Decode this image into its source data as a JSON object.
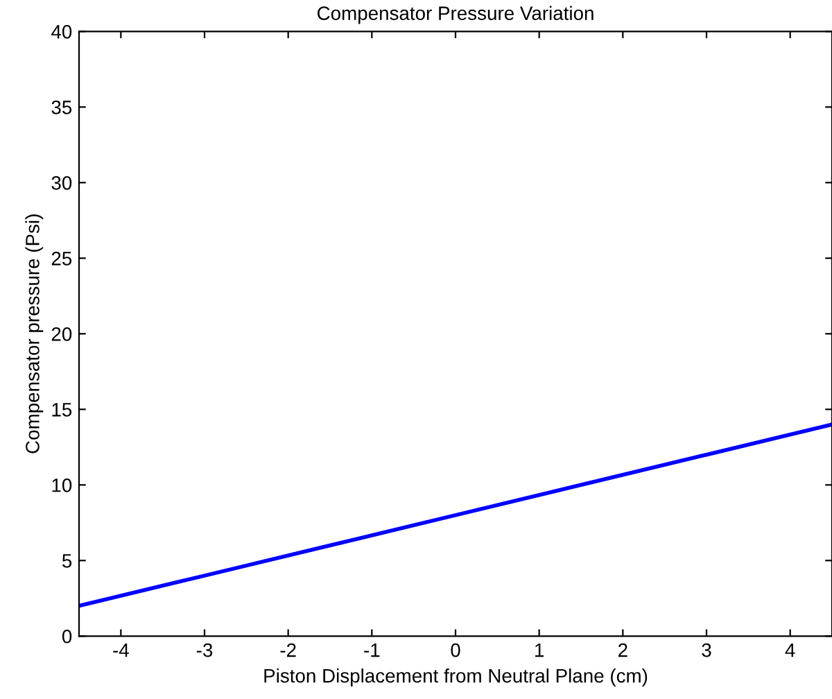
{
  "chart_data": {
    "type": "line",
    "title": "Compensator Pressure Variation",
    "xlabel": "Piston Displacement from Neutral Plane (cm)",
    "ylabel": "Compensator pressure (Psi)",
    "series": [
      {
        "color": "#0000ff",
        "x": [
          -4.5,
          -3,
          -1.5,
          0,
          1.5,
          3,
          4.5
        ],
        "values": [
          2,
          4,
          6,
          8,
          10,
          12,
          14
        ]
      }
    ],
    "xlim": [
      -4.5,
      4.5
    ],
    "xticks": [
      -4,
      -3,
      -2,
      -1,
      0,
      1,
      2,
      3,
      4
    ],
    "ylim": [
      0,
      40
    ],
    "yticks": [
      0,
      5,
      10,
      15,
      20,
      25,
      30,
      35,
      40
    ],
    "grid": false,
    "legend": false,
    "marker": "none",
    "line_style": "solid"
  }
}
